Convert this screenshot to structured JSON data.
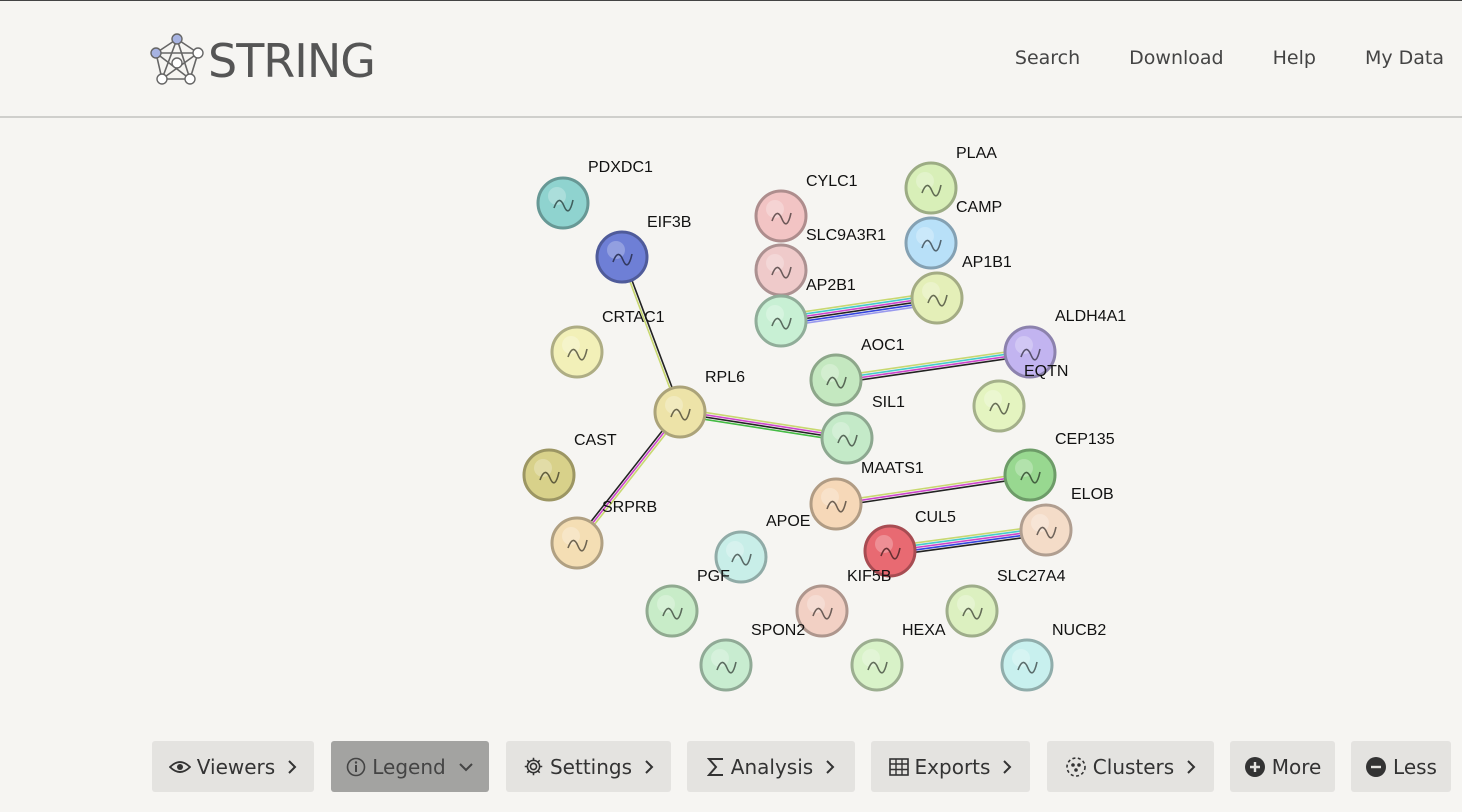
{
  "app": {
    "logo_text": "STRING"
  },
  "nav": [
    "Search",
    "Download",
    "Help",
    "My Data"
  ],
  "network": {
    "nodes": [
      {
        "id": "PDXDC1",
        "label": "PDXDC1",
        "color": "#8fd3cf"
      },
      {
        "id": "EIF3B",
        "label": "EIF3B",
        "color": "#6e7fd6"
      },
      {
        "id": "CRTAC1",
        "label": "CRTAC1",
        "color": "#f2f0b8"
      },
      {
        "id": "RPL6",
        "label": "RPL6",
        "color": "#ede3a8"
      },
      {
        "id": "CAST",
        "label": "CAST",
        "color": "#d8d18a"
      },
      {
        "id": "SRPRB",
        "label": "SRPRB",
        "color": "#f4deb4"
      },
      {
        "id": "CYLC1",
        "label": "CYLC1",
        "color": "#f2c4c4"
      },
      {
        "id": "SLC9A3R1",
        "label": "SLC9A3R1",
        "color": "#efcaca"
      },
      {
        "id": "AP2B1",
        "label": "AP2B1",
        "color": "#c8f0d4"
      },
      {
        "id": "PLAA",
        "label": "PLAA",
        "color": "#d8efb8"
      },
      {
        "id": "CAMP",
        "label": "CAMP",
        "color": "#b8e0f8"
      },
      {
        "id": "AP1B1",
        "label": "AP1B1",
        "color": "#e4efb8"
      },
      {
        "id": "ALDH4A1",
        "label": "ALDH4A1",
        "color": "#c2b4f0"
      },
      {
        "id": "AOC1",
        "label": "AOC1",
        "color": "#c4e8c0"
      },
      {
        "id": "EQTN",
        "label": "EQTN",
        "color": "#e4f4c0"
      },
      {
        "id": "SIL1",
        "label": "SIL1",
        "color": "#c4eac8"
      },
      {
        "id": "CEP135",
        "label": "CEP135",
        "color": "#98d890"
      },
      {
        "id": "MAATS1",
        "label": "MAATS1",
        "color": "#f6d8b8"
      },
      {
        "id": "ELOB",
        "label": "ELOB",
        "color": "#f4dcc8"
      },
      {
        "id": "APOE",
        "label": "APOE",
        "color": "#c8eee8"
      },
      {
        "id": "CUL5",
        "label": "CUL5",
        "color": "#e86a72"
      },
      {
        "id": "PGF",
        "label": "PGF",
        "color": "#c8ecc8"
      },
      {
        "id": "KIF5B",
        "label": "KIF5B",
        "color": "#f2d0c4"
      },
      {
        "id": "SLC27A4",
        "label": "SLC27A4",
        "color": "#dcf0c0"
      },
      {
        "id": "SPON2",
        "label": "SPON2",
        "color": "#c8ecd0"
      },
      {
        "id": "HEXA",
        "label": "HEXA",
        "color": "#d8f2c8"
      },
      {
        "id": "NUCB2",
        "label": "NUCB2",
        "color": "#c8f0ee"
      }
    ],
    "edges": [
      {
        "from": "EIF3B",
        "to": "RPL6",
        "colors": [
          "#222222",
          "#c8d870"
        ]
      },
      {
        "from": "RPL6",
        "to": "SIL1",
        "colors": [
          "#c8d870",
          "#cc44cc",
          "#222222",
          "#44bb44"
        ]
      },
      {
        "from": "RPL6",
        "to": "SRPRB",
        "colors": [
          "#c8d870",
          "#cc44cc",
          "#222222"
        ]
      },
      {
        "from": "AP2B1",
        "to": "AP1B1",
        "colors": [
          "#c8d870",
          "#44cccc",
          "#cc44cc",
          "#222222",
          "#3344dd",
          "#9999ee"
        ]
      },
      {
        "from": "AOC1",
        "to": "ALDH4A1",
        "colors": [
          "#c8d870",
          "#44cccc",
          "#cc44cc",
          "#222222"
        ]
      },
      {
        "from": "MAATS1",
        "to": "CEP135",
        "colors": [
          "#c8d870",
          "#cc44cc",
          "#222222"
        ]
      },
      {
        "from": "CUL5",
        "to": "ELOB",
        "colors": [
          "#c8d870",
          "#44cccc",
          "#cc44cc",
          "#3344dd",
          "#222222"
        ]
      }
    ]
  },
  "toolbar": [
    {
      "label": "Viewers",
      "icon": "eye-icon",
      "active": false
    },
    {
      "label": "Legend",
      "icon": "info-icon",
      "active": true
    },
    {
      "label": "Settings",
      "icon": "gear-icon",
      "active": false
    },
    {
      "label": "Analysis",
      "icon": "sigma-icon",
      "active": false
    },
    {
      "label": "Exports",
      "icon": "table-icon",
      "active": false
    },
    {
      "label": "Clusters",
      "icon": "clusters-icon",
      "active": false
    },
    {
      "label": "More",
      "icon": "plus-circle-icon",
      "active": false
    },
    {
      "label": "Less",
      "icon": "minus-circle-icon",
      "active": false
    }
  ]
}
